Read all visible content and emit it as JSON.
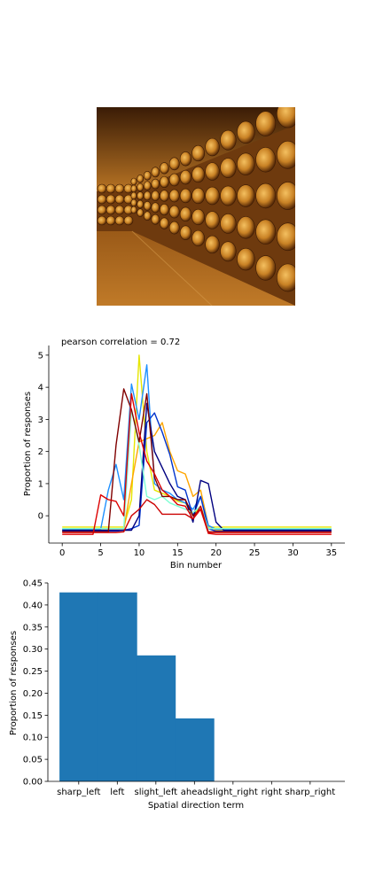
{
  "image": {
    "icon": "wine-cellar-barrels-photo"
  },
  "chart_data": [
    {
      "type": "line",
      "title": "pearson correlation = 0.72",
      "xlabel": "Bin number",
      "ylabel": "Proportion of responses",
      "xlim": [
        -1.75,
        36.75
      ],
      "ylim": [
        -0.85,
        5.3
      ],
      "xticks": [
        0,
        5,
        10,
        15,
        20,
        25,
        30,
        35
      ],
      "yticks": [
        0,
        1,
        2,
        3,
        4,
        5
      ],
      "grid": false,
      "x": [
        0,
        1,
        2,
        3,
        4,
        5,
        6,
        7,
        8,
        9,
        10,
        11,
        12,
        13,
        14,
        15,
        16,
        17,
        18,
        19,
        20,
        21,
        22,
        23,
        24,
        25,
        26,
        27,
        28,
        29,
        30,
        31,
        32,
        33,
        34,
        35
      ],
      "series": [
        {
          "color": "#e6e600",
          "values": [
            -0.35,
            -0.35,
            -0.35,
            -0.35,
            -0.35,
            -0.35,
            -0.35,
            -0.35,
            -0.35,
            0.5,
            5.0,
            2.0,
            0.8,
            0.7,
            0.6,
            0.45,
            0.4,
            0.0,
            0.3,
            -0.35,
            -0.35,
            -0.35,
            -0.35,
            -0.35,
            -0.35,
            -0.35,
            -0.35,
            -0.35,
            -0.35,
            -0.35,
            -0.35,
            -0.35,
            -0.35,
            -0.35,
            -0.35,
            -0.35
          ]
        },
        {
          "color": "#ffa500",
          "values": [
            -0.45,
            -0.45,
            -0.45,
            -0.45,
            -0.45,
            -0.45,
            -0.45,
            -0.45,
            -0.45,
            1.0,
            2.3,
            2.4,
            2.5,
            2.9,
            2.0,
            1.4,
            1.3,
            0.6,
            0.8,
            -0.3,
            -0.45,
            -0.45,
            -0.45,
            -0.45,
            -0.45,
            -0.45,
            -0.45,
            -0.45,
            -0.45,
            -0.45,
            -0.45,
            -0.45,
            -0.45,
            -0.45,
            -0.45,
            -0.45
          ]
        },
        {
          "color": "#1e90ff",
          "values": [
            -0.42,
            -0.42,
            -0.42,
            -0.42,
            -0.42,
            -0.42,
            0.8,
            1.6,
            0.5,
            4.1,
            3.0,
            4.7,
            1.0,
            0.8,
            0.7,
            0.5,
            0.4,
            0.2,
            0.6,
            -0.3,
            -0.42,
            -0.42,
            -0.42,
            -0.42,
            -0.42,
            -0.42,
            -0.42,
            -0.42,
            -0.42,
            -0.42,
            -0.42,
            -0.42,
            -0.42,
            -0.42,
            -0.42,
            -0.42
          ]
        },
        {
          "color": "#0033cc",
          "values": [
            -0.48,
            -0.48,
            -0.48,
            -0.48,
            -0.48,
            -0.48,
            -0.48,
            -0.48,
            -0.45,
            -0.4,
            -0.3,
            2.9,
            3.2,
            2.6,
            1.9,
            0.9,
            0.8,
            0.0,
            0.6,
            -0.4,
            -0.48,
            -0.48,
            -0.48,
            -0.48,
            -0.48,
            -0.48,
            -0.48,
            -0.48,
            -0.48,
            -0.48,
            -0.48,
            -0.48,
            -0.48,
            -0.48,
            -0.48,
            -0.48
          ]
        },
        {
          "color": "#000080",
          "values": [
            -0.45,
            -0.45,
            -0.45,
            -0.45,
            -0.45,
            -0.45,
            -0.45,
            -0.45,
            -0.45,
            -0.45,
            0.0,
            3.5,
            2.0,
            1.5,
            1.0,
            0.6,
            0.5,
            -0.2,
            1.1,
            1.0,
            -0.2,
            -0.45,
            -0.45,
            -0.45,
            -0.45,
            -0.45,
            -0.45,
            -0.45,
            -0.45,
            -0.45,
            -0.45,
            -0.45,
            -0.45,
            -0.45,
            -0.45,
            -0.45
          ]
        },
        {
          "color": "#7fffd4",
          "values": [
            -0.4,
            -0.4,
            -0.4,
            -0.4,
            -0.4,
            -0.4,
            -0.4,
            -0.4,
            -0.4,
            3.3,
            2.2,
            0.6,
            0.5,
            0.6,
            0.4,
            0.3,
            0.2,
            0.1,
            0.3,
            -0.4,
            -0.4,
            -0.4,
            -0.4,
            -0.4,
            -0.4,
            -0.4,
            -0.4,
            -0.4,
            -0.4,
            -0.4,
            -0.4,
            -0.4,
            -0.4,
            -0.4,
            -0.4,
            -0.4
          ]
        },
        {
          "color": "#800000",
          "values": [
            -0.5,
            -0.5,
            -0.5,
            -0.5,
            -0.5,
            -0.5,
            -0.5,
            2.2,
            3.95,
            3.3,
            2.3,
            3.8,
            1.2,
            0.6,
            0.6,
            0.5,
            0.5,
            0.0,
            0.2,
            -0.5,
            -0.5,
            -0.5,
            -0.5,
            -0.5,
            -0.5,
            -0.5,
            -0.5,
            -0.5,
            -0.5,
            -0.5,
            -0.5,
            -0.5,
            -0.5,
            -0.5,
            -0.5,
            -0.5
          ]
        },
        {
          "color": "#dd0000",
          "values": [
            -0.58,
            -0.58,
            -0.58,
            -0.58,
            -0.58,
            0.65,
            0.5,
            0.45,
            0.0,
            3.8,
            2.6,
            1.7,
            1.3,
            0.8,
            0.6,
            0.35,
            0.3,
            -0.1,
            0.2,
            -0.55,
            -0.58,
            -0.58,
            -0.58,
            -0.58,
            -0.58,
            -0.58,
            -0.58,
            -0.58,
            -0.58,
            -0.58,
            -0.58,
            -0.58,
            -0.58,
            -0.58,
            -0.58,
            -0.58
          ]
        },
        {
          "color": "#cc0000",
          "values": [
            -0.52,
            -0.52,
            -0.52,
            -0.52,
            -0.52,
            -0.52,
            -0.52,
            -0.52,
            -0.5,
            0.0,
            0.2,
            0.5,
            0.35,
            0.05,
            0.05,
            0.05,
            0.05,
            -0.1,
            0.3,
            -0.52,
            -0.52,
            -0.52,
            -0.52,
            -0.52,
            -0.52,
            -0.52,
            -0.52,
            -0.52,
            -0.52,
            -0.52,
            -0.52,
            -0.52,
            -0.52,
            -0.52,
            -0.52,
            -0.52
          ]
        }
      ]
    },
    {
      "type": "bar",
      "xlabel": "Spatial direction term",
      "ylabel": "Proportion of responses",
      "categories": [
        "sharp_left",
        "left",
        "slight_left",
        "ahead",
        "slight_right",
        "right",
        "sharp_right"
      ],
      "values": [
        0.4286,
        0.4286,
        0.2857,
        0.1429,
        0,
        0,
        0
      ],
      "ylim": [
        0,
        0.45
      ],
      "yticks": [
        0.0,
        0.05,
        0.1,
        0.15,
        0.2,
        0.25,
        0.3,
        0.35,
        0.4,
        0.45
      ],
      "color": "#1f77b4",
      "grid": false
    }
  ]
}
